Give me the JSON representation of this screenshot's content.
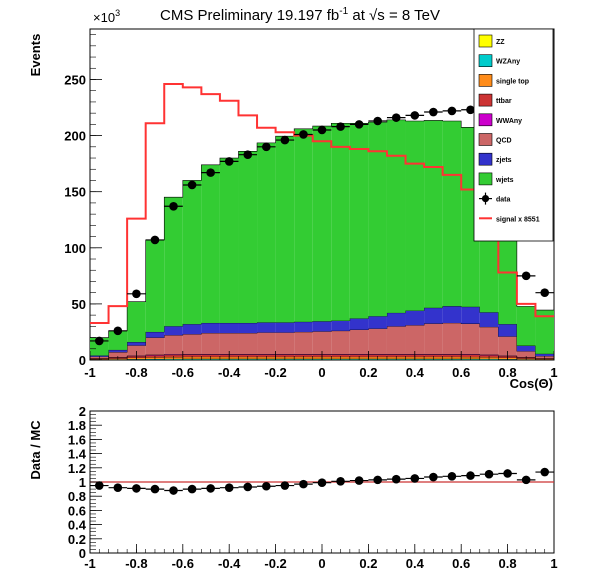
{
  "chart_data": [
    {
      "type": "bar",
      "stacked": true,
      "title": "CMS Preliminary 19.197 fb",
      "title_lumi_sup": "-1",
      "title_energy_prefix": " at ",
      "title_energy_sqrt": "√s",
      "title_energy_suffix": " = 8 TeV",
      "xlabel": "Cos(Θ)",
      "ylabel": "Events",
      "y_multiplier": "×10",
      "y_multiplier_sup": "3",
      "xlim": [
        -1,
        1
      ],
      "ylim": [
        0,
        295
      ],
      "xticks": [
        "-1",
        "-0.8",
        "-0.6",
        "-0.4",
        "-0.2",
        "0",
        "0.2",
        "0.4",
        "0.6",
        "0.8",
        "1"
      ],
      "yticks": [
        "0",
        "50",
        "100",
        "150",
        "200",
        "250"
      ],
      "bin_edges": [
        -1.0,
        -0.92,
        -0.84,
        -0.76,
        -0.68,
        -0.6,
        -0.52,
        -0.44,
        -0.36,
        -0.28,
        -0.2,
        -0.12,
        -0.04,
        0.04,
        0.12,
        0.2,
        0.28,
        0.36,
        0.44,
        0.52,
        0.6,
        0.68,
        0.76,
        0.84,
        0.92,
        1.0
      ],
      "series": [
        {
          "name": "ZZ",
          "color": "#ffff00",
          "values": [
            0.1,
            0.2,
            0.3,
            0.3,
            0.4,
            0.4,
            0.4,
            0.4,
            0.4,
            0.4,
            0.4,
            0.4,
            0.4,
            0.4,
            0.4,
            0.4,
            0.4,
            0.4,
            0.4,
            0.4,
            0.4,
            0.4,
            0.3,
            0.2,
            0.1
          ]
        },
        {
          "name": "WZAny",
          "color": "#00cccc",
          "values": [
            0.2,
            0.3,
            0.5,
            0.6,
            0.6,
            0.7,
            0.7,
            0.7,
            0.7,
            0.7,
            0.7,
            0.7,
            0.7,
            0.7,
            0.7,
            0.7,
            0.7,
            0.7,
            0.7,
            0.7,
            0.7,
            0.6,
            0.5,
            0.3,
            0.2
          ]
        },
        {
          "name": "single top",
          "color": "#ff8c1a",
          "values": [
            0.5,
            0.8,
            1.2,
            1.5,
            1.6,
            1.7,
            1.7,
            1.7,
            1.7,
            1.7,
            1.7,
            1.7,
            1.7,
            1.7,
            1.7,
            1.7,
            1.7,
            1.7,
            1.7,
            1.7,
            1.6,
            1.5,
            1.2,
            0.8,
            0.5
          ]
        },
        {
          "name": "ttbar",
          "color": "#cc3333",
          "values": [
            0.6,
            1.0,
            1.5,
            1.8,
            2.0,
            2.0,
            2.0,
            2.0,
            2.0,
            2.0,
            2.0,
            2.0,
            2.0,
            2.0,
            2.0,
            2.0,
            2.0,
            2.0,
            2.0,
            2.0,
            2.0,
            1.8,
            1.5,
            1.0,
            0.6
          ]
        },
        {
          "name": "WWAny",
          "color": "#cc00cc",
          "values": [
            0.2,
            0.3,
            0.4,
            0.5,
            0.5,
            0.5,
            0.5,
            0.5,
            0.5,
            0.5,
            0.5,
            0.5,
            0.5,
            0.5,
            0.5,
            0.5,
            0.5,
            0.5,
            0.5,
            0.5,
            0.5,
            0.5,
            0.4,
            0.3,
            0.2
          ]
        },
        {
          "name": "QCD",
          "color": "#cc6666",
          "values": [
            1.4,
            4.4,
            9.1,
            15.3,
            17.0,
            17.7,
            18.7,
            18.7,
            18.7,
            19.2,
            19.2,
            19.7,
            20.2,
            20.7,
            21.7,
            22.7,
            24.7,
            25.7,
            27.2,
            27.7,
            27.2,
            24.7,
            17.1,
            5.2,
            1.9
          ]
        },
        {
          "name": "zjets",
          "color": "#3333cc",
          "values": [
            1.0,
            2.0,
            3.0,
            5.0,
            8.0,
            9.0,
            9.0,
            9.0,
            9.0,
            9.0,
            9.0,
            9.0,
            9.0,
            9.0,
            10.0,
            11.0,
            12.0,
            13.0,
            14.0,
            15.0,
            15.0,
            13.0,
            11.0,
            5.0,
            2.0
          ]
        },
        {
          "name": "wjets",
          "color": "#33cc33",
          "values": [
            16.0,
            17.0,
            36.0,
            82.0,
            115.0,
            128.0,
            141.0,
            147.0,
            153.0,
            160.0,
            166.0,
            172.0,
            174.0,
            176.0,
            174.0,
            173.0,
            172.0,
            169.0,
            167.0,
            165.0,
            160.0,
            151.0,
            97.0,
            35.0,
            39.0
          ]
        }
      ],
      "data": {
        "name": "data",
        "values": [
          17,
          26,
          59,
          107,
          137,
          156,
          167,
          177,
          183,
          190,
          196,
          201,
          205,
          208,
          210,
          213,
          216,
          218,
          221,
          222,
          223,
          219,
          172,
          75,
          60
        ]
      },
      "signal": {
        "name": "signal x 8551",
        "color": "#ff3333",
        "values": [
          33,
          48,
          126,
          211,
          246,
          243,
          237,
          231,
          218,
          207,
          203,
          200,
          195,
          190,
          188,
          186,
          182,
          175,
          172,
          165,
          152,
          123,
          78,
          50,
          39
        ]
      }
    },
    {
      "type": "scatter",
      "ylabel": "Data / MC",
      "xlim": [
        -1,
        1
      ],
      "ylim": [
        0,
        2
      ],
      "xticks": [
        "-1",
        "-0.8",
        "-0.6",
        "-0.4",
        "-0.2",
        "0",
        "0.2",
        "0.4",
        "0.6",
        "0.8",
        "1"
      ],
      "yticks": [
        "0",
        "0.2",
        "0.4",
        "0.6",
        "0.8",
        "1",
        "1.2",
        "1.4",
        "1.6",
        "1.8",
        "2"
      ],
      "reference_line": 1,
      "x": [
        -0.96,
        -0.88,
        -0.8,
        -0.72,
        -0.64,
        -0.56,
        -0.48,
        -0.4,
        -0.32,
        -0.24,
        -0.16,
        -0.08,
        0.0,
        0.08,
        0.16,
        0.24,
        0.32,
        0.4,
        0.48,
        0.56,
        0.64,
        0.72,
        0.8,
        0.88,
        0.96
      ],
      "y": [
        0.95,
        0.92,
        0.91,
        0.9,
        0.88,
        0.9,
        0.91,
        0.92,
        0.93,
        0.94,
        0.95,
        0.97,
        0.99,
        1.01,
        1.02,
        1.03,
        1.04,
        1.05,
        1.07,
        1.08,
        1.09,
        1.11,
        1.12,
        1.03,
        1.14
      ]
    }
  ]
}
